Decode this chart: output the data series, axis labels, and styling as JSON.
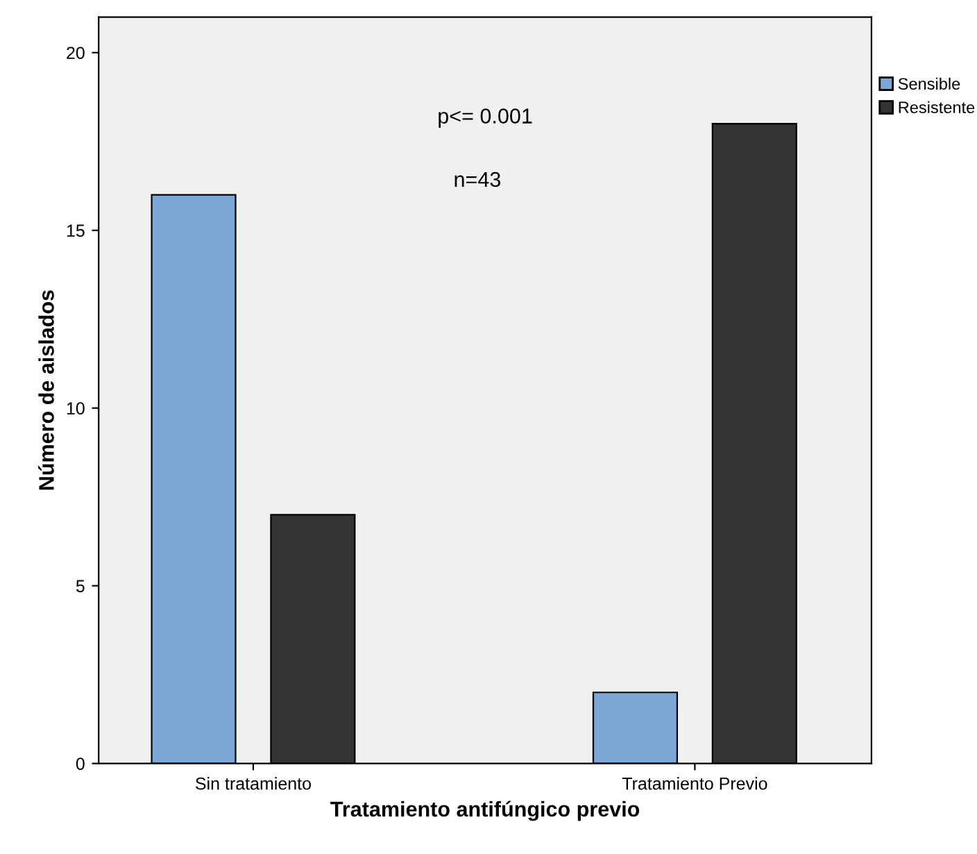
{
  "chart_data": {
    "type": "bar",
    "xlabel": "Tratamiento antifúngico previo",
    "ylabel": "Número de aislados",
    "categories": [
      "Sin tratamiento",
      "Tratamiento Previo"
    ],
    "series": [
      {
        "name": "Sensible",
        "color": "#7ba7d6",
        "values": [
          16,
          2
        ]
      },
      {
        "name": "Resistente",
        "color": "#333333",
        "values": [
          7,
          18
        ]
      }
    ],
    "ylim": [
      0,
      21
    ],
    "yticks": [
      0,
      5,
      10,
      15,
      20
    ],
    "grid": false,
    "legend": "top right",
    "annotations": [
      "p<= 0.001",
      "n=43"
    ]
  }
}
